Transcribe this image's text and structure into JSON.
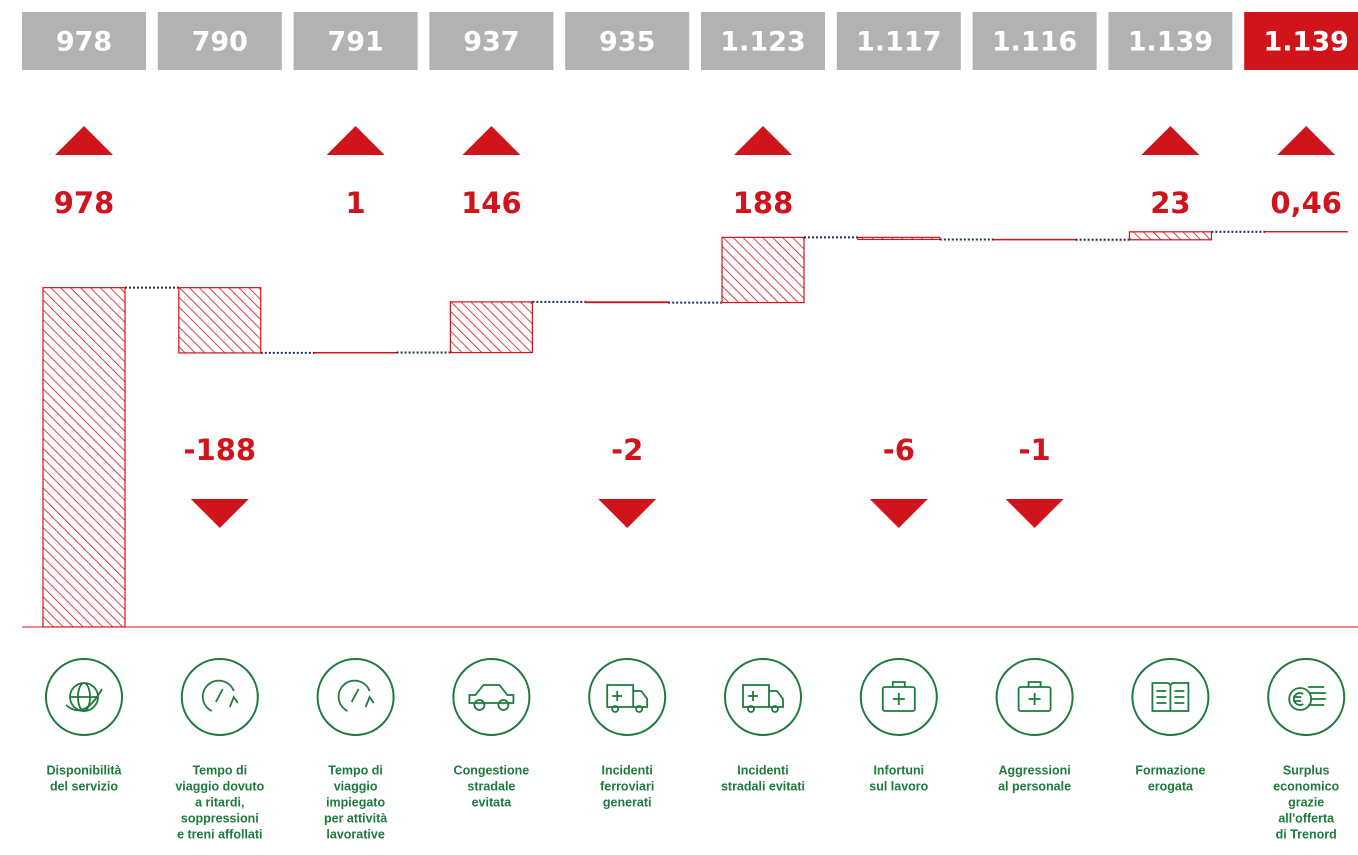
{
  "chart_data": {
    "type": "waterfall",
    "categories": [
      [
        "Disponibilità",
        "del servizio"
      ],
      [
        "Tempo di",
        "viaggio dovuto",
        "a ritardi,",
        "soppressioni",
        "e treni affollati"
      ],
      [
        "Tempo di",
        "viaggio",
        "impiegato",
        "per attività",
        "lavorative"
      ],
      [
        "Congestione",
        "stradale",
        "evitata"
      ],
      [
        "Incidenti",
        "ferroviari",
        "generati"
      ],
      [
        "Incidenti",
        "stradali evitati"
      ],
      [
        "Infortuni",
        "sul lavoro"
      ],
      [
        "Aggressioni",
        "al personale"
      ],
      [
        "Formazione",
        "erogata"
      ],
      [
        "Surplus",
        "economico",
        "grazie",
        "all'offerta",
        "di Trenord"
      ]
    ],
    "values": [
      978,
      -188,
      1,
      146,
      -2,
      188,
      -6,
      -1,
      23,
      0.46
    ],
    "value_labels": [
      "978",
      "-188",
      "1",
      "146",
      "-2",
      "188",
      "-6",
      "-1",
      "23",
      "0,46"
    ],
    "total_labels": [
      "978",
      "790",
      "791",
      "937",
      "935",
      "1.123",
      "1.117",
      "1.116",
      "1.139",
      "1.139"
    ],
    "color": "#d0141c",
    "total_color": "#b2b2b2",
    "final_total_color": "#d0141c",
    "connector_color": "#1f2d5a",
    "icon_color": "#1e7a3c",
    "ylim": [
      0,
      1150
    ]
  }
}
